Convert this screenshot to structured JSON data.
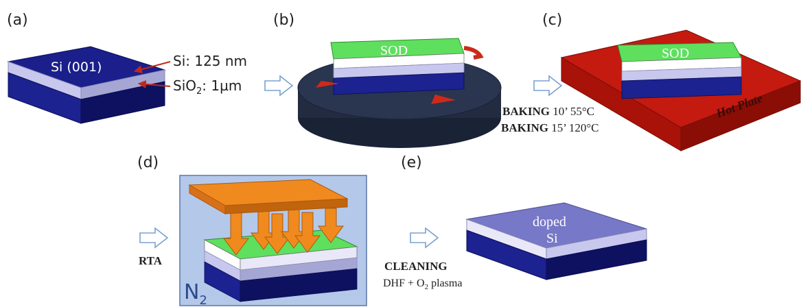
{
  "panels": {
    "a": {
      "label": "(a)",
      "block_label": "Si (001)",
      "si_label": "Si: 125 nm",
      "sio2_prefix": "SiO",
      "sio2_sub": "2",
      "sio2_suffix": ": 1µm"
    },
    "b": {
      "label": "(b)",
      "layer_label": "SOD"
    },
    "c": {
      "label": "(c)",
      "layer_label": "SOD",
      "hotplate_label": "Hot Plate",
      "step1_bold": "BAKING",
      "step1_rest": " 10’ 55°C",
      "step2_bold": "BAKING",
      "step2_rest": " 15’ 120°C"
    },
    "d": {
      "label": "(d)",
      "step_label": "RTA",
      "ambient_main": "N",
      "ambient_sub": "2"
    },
    "e": {
      "label": "(e)",
      "layer_label_line1": "doped",
      "layer_label_line2": "Si",
      "step_label": "CLEANING",
      "step_detail_prefix": "DHF + O",
      "step_detail_sub": "2",
      "step_detail_suffix": " plasma"
    }
  },
  "colors": {
    "si_top": "#1a1f8c",
    "si_front": "#1c2290",
    "si_side": "#0d1160",
    "oxide_front": "#c8c8ee",
    "oxide_side": "#a6a6d4",
    "sod_top": "#5ee05e",
    "sod_front": "#3fc03f",
    "sod_side": "#2c9a2c",
    "spinner": "#2a3550",
    "hotplate": "#cc1a10",
    "lamp": "#f08a1e",
    "chamber": "#b4c8ea",
    "doped_top": "#7878c8",
    "arrow_red": "#cc2a1a"
  }
}
